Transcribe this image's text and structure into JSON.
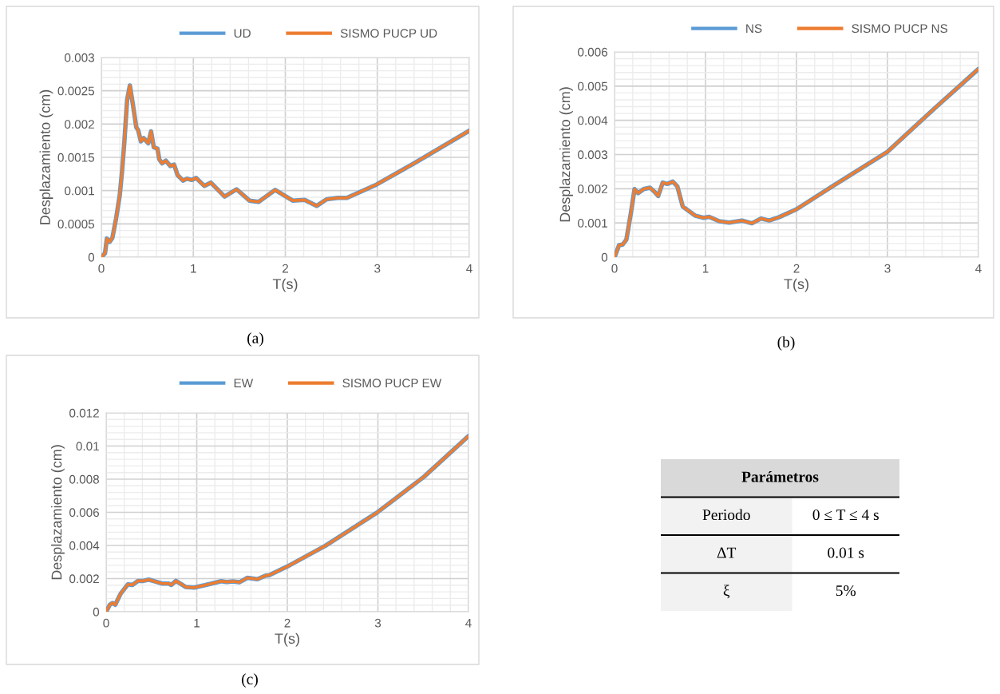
{
  "chart_data": [
    {
      "type": "line",
      "xlabel": "T(s)",
      "ylabel": "Desplazamiento (cm)",
      "xlim": [
        0,
        4
      ],
      "xticks": [
        0,
        1,
        2,
        3,
        4
      ],
      "ylim": [
        0,
        0.003
      ],
      "yticks": [
        0,
        0.0005,
        0.001,
        0.0015,
        0.002,
        0.0025,
        0.003
      ],
      "grid": true,
      "legend": "top",
      "annotations": [
        "(a)"
      ],
      "x": [
        0,
        0.04,
        0.06,
        0.09,
        0.12,
        0.16,
        0.2,
        0.225,
        0.25,
        0.28,
        0.31,
        0.34,
        0.38,
        0.4,
        0.43,
        0.46,
        0.51,
        0.54,
        0.57,
        0.61,
        0.63,
        0.66,
        0.7,
        0.75,
        0.79,
        0.83,
        0.89,
        0.93,
        0.98,
        1.03,
        1.12,
        1.19,
        1.34,
        1.47,
        1.61,
        1.71,
        1.89,
        2.08,
        2.21,
        2.34,
        2.45,
        2.57,
        2.67,
        2.99,
        3.4,
        4
      ],
      "series": [
        {
          "name": "UD",
          "color": "#5b9bd5",
          "values": [
            0,
            6e-05,
            0.00028,
            0.00023,
            0.00029,
            0.00058,
            0.00093,
            0.00129,
            0.00173,
            0.00236,
            0.00258,
            0.00232,
            0.00195,
            0.00191,
            0.00174,
            0.00179,
            0.00171,
            0.00189,
            0.00165,
            0.00163,
            0.00147,
            0.00141,
            0.00145,
            0.00137,
            0.00139,
            0.00123,
            0.00115,
            0.00118,
            0.00116,
            0.00119,
            0.00107,
            0.00112,
            0.00091,
            0.00102,
            0.00085,
            0.00083,
            0.00101,
            0.00085,
            0.00086,
            0.00077,
            0.00087,
            0.00089,
            0.00089,
            0.00109,
            0.00141,
            0.0019
          ]
        },
        {
          "name": "SISMO PUCP UD",
          "color": "#ed7d31",
          "values": [
            0,
            6e-05,
            0.00028,
            0.00023,
            0.00029,
            0.00058,
            0.00093,
            0.00129,
            0.00173,
            0.00236,
            0.00258,
            0.00232,
            0.00195,
            0.00191,
            0.00174,
            0.00179,
            0.00171,
            0.00189,
            0.00165,
            0.00163,
            0.00147,
            0.00141,
            0.00145,
            0.00137,
            0.00139,
            0.00123,
            0.00115,
            0.00118,
            0.00116,
            0.00119,
            0.00107,
            0.00112,
            0.00091,
            0.00102,
            0.00085,
            0.00083,
            0.00101,
            0.00085,
            0.00086,
            0.00077,
            0.00087,
            0.00089,
            0.00089,
            0.00109,
            0.00141,
            0.0019
          ]
        }
      ]
    },
    {
      "type": "line",
      "xlabel": "T(s)",
      "ylabel": "Desplazamiento (cm)",
      "xlim": [
        0,
        4
      ],
      "xticks": [
        0,
        1,
        2,
        3,
        4
      ],
      "ylim": [
        0,
        0.006
      ],
      "yticks": [
        0,
        0.001,
        0.002,
        0.003,
        0.004,
        0.005,
        0.006
      ],
      "grid": true,
      "legend": "top",
      "annotations": [
        "(b)"
      ],
      "x": [
        0,
        0.05,
        0.09,
        0.13,
        0.18,
        0.22,
        0.26,
        0.32,
        0.39,
        0.44,
        0.48,
        0.53,
        0.58,
        0.64,
        0.69,
        0.75,
        0.79,
        0.89,
        0.98,
        1.04,
        1.15,
        1.26,
        1.4,
        1.51,
        1.61,
        1.7,
        1.81,
        2.0,
        2.4,
        3.0,
        3.51,
        4
      ],
      "series": [
        {
          "name": "NS",
          "color": "#5b9bd5",
          "values": [
            0,
            0.00035,
            0.00037,
            0.00051,
            0.00129,
            0.00199,
            0.00187,
            0.00199,
            0.00203,
            0.00191,
            0.00179,
            0.00218,
            0.00214,
            0.00221,
            0.00207,
            0.00148,
            0.0014,
            0.00121,
            0.00115,
            0.00118,
            0.00105,
            0.00101,
            0.00107,
            0.00099,
            0.00113,
            0.00107,
            0.00117,
            0.0014,
            0.00208,
            0.00308,
            0.00433,
            0.0055
          ]
        },
        {
          "name": "SISMO PUCP NS",
          "color": "#ed7d31",
          "values": [
            0,
            0.00035,
            0.00037,
            0.00051,
            0.00129,
            0.00199,
            0.00187,
            0.00199,
            0.00203,
            0.00191,
            0.00179,
            0.00218,
            0.00214,
            0.00221,
            0.00207,
            0.00148,
            0.0014,
            0.00121,
            0.00115,
            0.00118,
            0.00105,
            0.00101,
            0.00107,
            0.00099,
            0.00113,
            0.00107,
            0.00117,
            0.0014,
            0.00208,
            0.00308,
            0.00433,
            0.0055
          ]
        }
      ]
    },
    {
      "type": "line",
      "xlabel": "T(s)",
      "ylabel": "Desplazamiento (cm)",
      "xlim": [
        0,
        4
      ],
      "xticks": [
        0,
        1,
        2,
        3,
        4
      ],
      "ylim": [
        0,
        0.012
      ],
      "yticks": [
        0,
        0.002,
        0.004,
        0.006,
        0.008,
        0.01,
        0.012
      ],
      "grid": true,
      "legend": "top",
      "annotations": [
        "(c)"
      ],
      "x": [
        0,
        0.04,
        0.07,
        0.1,
        0.16,
        0.24,
        0.29,
        0.35,
        0.41,
        0.47,
        0.55,
        0.62,
        0.69,
        0.72,
        0.77,
        0.81,
        0.88,
        0.97,
        1.09,
        1.27,
        1.33,
        1.4,
        1.47,
        1.56,
        1.67,
        1.76,
        1.8,
        2.0,
        2.42,
        2.99,
        3.51,
        4
      ],
      "series": [
        {
          "name": "EW",
          "color": "#5b9bd5",
          "values": [
            0,
            0.00042,
            0.00053,
            0.00042,
            0.00109,
            0.00165,
            0.00162,
            0.00186,
            0.00186,
            0.00194,
            0.00181,
            0.0017,
            0.0017,
            0.00162,
            0.00186,
            0.00173,
            0.00149,
            0.00146,
            0.0016,
            0.00184,
            0.0018,
            0.00183,
            0.00178,
            0.00205,
            0.00196,
            0.00218,
            0.00221,
            0.00273,
            0.00398,
            0.00598,
            0.00815,
            0.0106
          ]
        },
        {
          "name": "SISMO PUCP EW",
          "color": "#ed7d31",
          "values": [
            0,
            0.00042,
            0.00053,
            0.00042,
            0.00109,
            0.00165,
            0.00162,
            0.00186,
            0.00186,
            0.00194,
            0.00181,
            0.0017,
            0.0017,
            0.00162,
            0.00186,
            0.00173,
            0.00149,
            0.00146,
            0.0016,
            0.00184,
            0.0018,
            0.00183,
            0.00178,
            0.00205,
            0.00196,
            0.00218,
            0.00221,
            0.00273,
            0.00398,
            0.00598,
            0.00815,
            0.0106
          ]
        }
      ]
    },
    {
      "type": "other",
      "title": "Parámetros",
      "annotations": [
        "Periodo",
        "0 ≤ T ≤ 4 s",
        "ΔT",
        "0.01 s",
        "ξ",
        "5%"
      ]
    }
  ]
}
